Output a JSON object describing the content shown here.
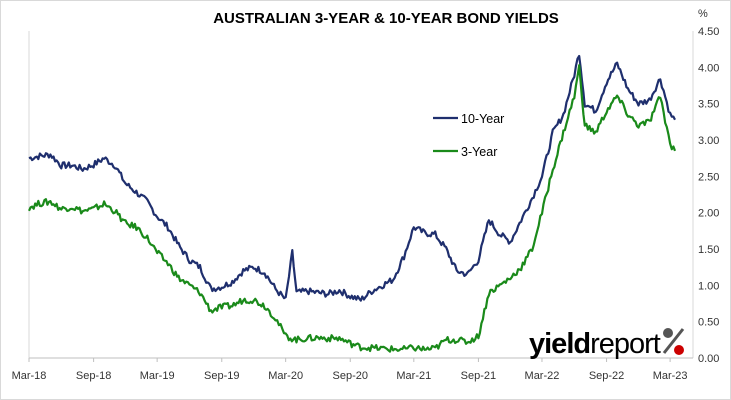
{
  "chart_data": {
    "type": "line",
    "title": "AUSTRALIAN 3-YEAR & 10-YEAR BOND YIELDS",
    "y_unit": "%",
    "xlabel": "",
    "ylabel": "",
    "ylim": [
      0,
      4.5
    ],
    "y_ticks": [
      "0.00",
      "0.50",
      "1.00",
      "1.50",
      "2.00",
      "2.50",
      "3.00",
      "3.50",
      "4.00",
      "4.50"
    ],
    "x_tick_labels": [
      "Mar-18",
      "Sep-18",
      "Mar-19",
      "Sep-19",
      "Mar-20",
      "Sep-20",
      "Mar-21",
      "Sep-21",
      "Mar-22",
      "Sep-22",
      "Mar-23"
    ],
    "x_tick_dates": [
      "2018-03",
      "2018-09",
      "2019-03",
      "2019-09",
      "2020-03",
      "2020-09",
      "2021-03",
      "2021-09",
      "2022-03",
      "2022-09",
      "2023-03"
    ],
    "grid": {
      "horizontal": false,
      "vertical": false
    },
    "y_axis_side": "right",
    "legend_position": "center-right",
    "series": [
      {
        "name": "10-Year",
        "color": "#1f2f6e",
        "points": [
          [
            "2018-03-01",
            2.75
          ],
          [
            "2018-04-01",
            2.78
          ],
          [
            "2018-05-01",
            2.8
          ],
          [
            "2018-06-01",
            2.65
          ],
          [
            "2018-07-01",
            2.65
          ],
          [
            "2018-08-01",
            2.6
          ],
          [
            "2018-09-01",
            2.66
          ],
          [
            "2018-10-01",
            2.75
          ],
          [
            "2018-11-01",
            2.65
          ],
          [
            "2018-12-01",
            2.4
          ],
          [
            "2019-01-01",
            2.28
          ],
          [
            "2019-02-01",
            2.15
          ],
          [
            "2019-03-01",
            1.95
          ],
          [
            "2019-04-01",
            1.8
          ],
          [
            "2019-05-01",
            1.55
          ],
          [
            "2019-06-01",
            1.35
          ],
          [
            "2019-07-01",
            1.25
          ],
          [
            "2019-08-01",
            0.95
          ],
          [
            "2019-09-01",
            0.98
          ],
          [
            "2019-10-01",
            1.05
          ],
          [
            "2019-11-01",
            1.2
          ],
          [
            "2019-12-01",
            1.25
          ],
          [
            "2020-01-01",
            1.18
          ],
          [
            "2020-02-01",
            0.95
          ],
          [
            "2020-03-01",
            0.8
          ],
          [
            "2020-03-20",
            1.45
          ],
          [
            "2020-04-01",
            0.9
          ],
          [
            "2020-05-01",
            0.92
          ],
          [
            "2020-06-01",
            0.9
          ],
          [
            "2020-07-01",
            0.88
          ],
          [
            "2020-08-01",
            0.93
          ],
          [
            "2020-09-01",
            0.85
          ],
          [
            "2020-10-01",
            0.8
          ],
          [
            "2020-11-01",
            0.92
          ],
          [
            "2020-12-01",
            1.0
          ],
          [
            "2021-01-01",
            1.08
          ],
          [
            "2021-02-01",
            1.4
          ],
          [
            "2021-03-01",
            1.8
          ],
          [
            "2021-04-01",
            1.72
          ],
          [
            "2021-05-01",
            1.7
          ],
          [
            "2021-06-01",
            1.5
          ],
          [
            "2021-07-01",
            1.2
          ],
          [
            "2021-08-01",
            1.15
          ],
          [
            "2021-09-01",
            1.35
          ],
          [
            "2021-10-01",
            1.9
          ],
          [
            "2021-11-01",
            1.7
          ],
          [
            "2021-12-01",
            1.6
          ],
          [
            "2022-01-01",
            1.9
          ],
          [
            "2022-02-01",
            2.2
          ],
          [
            "2022-03-01",
            2.5
          ],
          [
            "2022-04-01",
            3.1
          ],
          [
            "2022-05-01",
            3.35
          ],
          [
            "2022-06-01",
            3.9
          ],
          [
            "2022-06-15",
            4.2
          ],
          [
            "2022-07-01",
            3.5
          ],
          [
            "2022-08-01",
            3.4
          ],
          [
            "2022-09-01",
            3.8
          ],
          [
            "2022-10-01",
            4.05
          ],
          [
            "2022-11-01",
            3.7
          ],
          [
            "2022-12-01",
            3.5
          ],
          [
            "2023-01-01",
            3.55
          ],
          [
            "2023-02-01",
            3.85
          ],
          [
            "2023-03-01",
            3.35
          ],
          [
            "2023-03-15",
            3.28
          ]
        ]
      },
      {
        "name": "3-Year",
        "color": "#1a8a1a",
        "points": [
          [
            "2018-03-01",
            2.07
          ],
          [
            "2018-04-01",
            2.13
          ],
          [
            "2018-05-01",
            2.15
          ],
          [
            "2018-06-01",
            2.05
          ],
          [
            "2018-07-01",
            2.08
          ],
          [
            "2018-08-01",
            2.02
          ],
          [
            "2018-09-01",
            2.05
          ],
          [
            "2018-10-01",
            2.12
          ],
          [
            "2018-11-01",
            2.02
          ],
          [
            "2018-12-01",
            1.85
          ],
          [
            "2019-01-01",
            1.8
          ],
          [
            "2019-02-01",
            1.65
          ],
          [
            "2019-03-01",
            1.45
          ],
          [
            "2019-04-01",
            1.3
          ],
          [
            "2019-05-01",
            1.1
          ],
          [
            "2019-06-01",
            1.0
          ],
          [
            "2019-07-01",
            0.9
          ],
          [
            "2019-08-01",
            0.65
          ],
          [
            "2019-09-01",
            0.7
          ],
          [
            "2019-10-01",
            0.72
          ],
          [
            "2019-11-01",
            0.8
          ],
          [
            "2019-12-01",
            0.8
          ],
          [
            "2020-01-01",
            0.72
          ],
          [
            "2020-02-01",
            0.55
          ],
          [
            "2020-03-01",
            0.3
          ],
          [
            "2020-04-01",
            0.25
          ],
          [
            "2020-05-01",
            0.27
          ],
          [
            "2020-06-01",
            0.28
          ],
          [
            "2020-07-01",
            0.27
          ],
          [
            "2020-08-01",
            0.27
          ],
          [
            "2020-09-01",
            0.2
          ],
          [
            "2020-10-01",
            0.15
          ],
          [
            "2020-11-01",
            0.14
          ],
          [
            "2020-12-01",
            0.13
          ],
          [
            "2021-01-01",
            0.12
          ],
          [
            "2021-02-01",
            0.12
          ],
          [
            "2021-03-01",
            0.14
          ],
          [
            "2021-04-01",
            0.12
          ],
          [
            "2021-05-01",
            0.13
          ],
          [
            "2021-06-01",
            0.25
          ],
          [
            "2021-07-01",
            0.25
          ],
          [
            "2021-08-01",
            0.22
          ],
          [
            "2021-09-01",
            0.3
          ],
          [
            "2021-10-01",
            0.9
          ],
          [
            "2021-11-01",
            1.0
          ],
          [
            "2021-12-01",
            1.1
          ],
          [
            "2022-01-01",
            1.25
          ],
          [
            "2022-02-01",
            1.5
          ],
          [
            "2022-03-01",
            2.0
          ],
          [
            "2022-04-01",
            2.6
          ],
          [
            "2022-05-01",
            3.1
          ],
          [
            "2022-06-01",
            3.6
          ],
          [
            "2022-06-15",
            4.0
          ],
          [
            "2022-07-01",
            3.2
          ],
          [
            "2022-08-01",
            3.1
          ],
          [
            "2022-09-01",
            3.4
          ],
          [
            "2022-10-01",
            3.6
          ],
          [
            "2022-11-01",
            3.35
          ],
          [
            "2022-12-01",
            3.2
          ],
          [
            "2023-01-01",
            3.25
          ],
          [
            "2023-02-01",
            3.6
          ],
          [
            "2023-03-01",
            2.95
          ],
          [
            "2023-03-15",
            2.85
          ]
        ]
      }
    ]
  },
  "logo": {
    "part1": "yield",
    "part2": "report",
    "symbol": "%",
    "colors": {
      "part1": "#000000",
      "part2": "#1f2f6e",
      "symbol_top": "#555555",
      "symbol_bottom": "#cc0000"
    }
  }
}
